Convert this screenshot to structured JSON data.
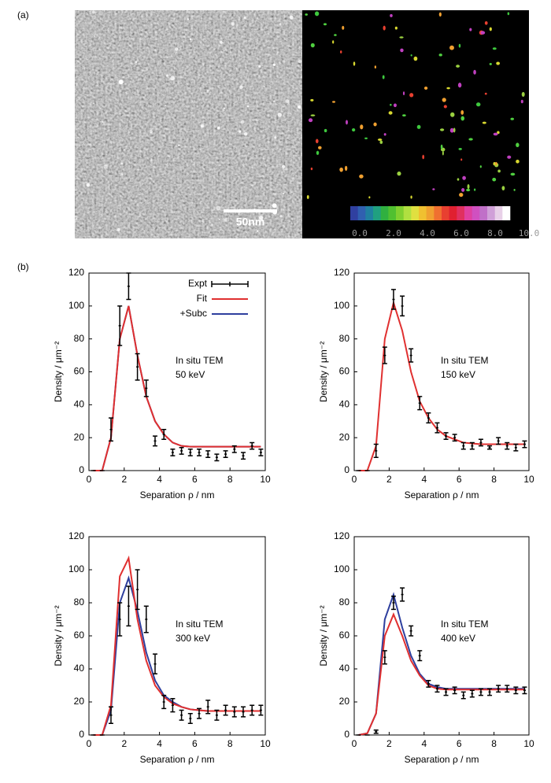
{
  "figure": {
    "label_a": "(a)",
    "label_b": "(b)",
    "scale_bar": "50nm",
    "colorbar_ticks": [
      "0.0",
      "2.0",
      "4.0",
      "6.0",
      "8.0",
      "10.0"
    ]
  },
  "chart_data": [
    {
      "type": "line",
      "xlabel": "Separation ρ / nm",
      "ylabel": "Density / μm⁻²",
      "annotations": [
        "In situ TEM",
        "50 keV"
      ],
      "legend": "upper right",
      "xlim": [
        0,
        10
      ],
      "xticks": [
        0,
        2,
        4,
        6,
        8,
        10
      ],
      "ylim": [
        0,
        120
      ],
      "yticks": [
        0,
        20,
        40,
        60,
        80,
        100,
        120
      ],
      "x": [
        0.25,
        0.75,
        1.25,
        1.75,
        2.25,
        2.75,
        3.25,
        3.75,
        4.25,
        4.75,
        5.25,
        5.75,
        6.25,
        6.75,
        7.25,
        7.75,
        8.25,
        8.75,
        9.25,
        9.75
      ],
      "series": [
        {
          "name": "Expt",
          "color": "#000000",
          "values": [
            0,
            0,
            25,
            88,
            112,
            63,
            50,
            18,
            22,
            11,
            12,
            11,
            11,
            10,
            8,
            10,
            13,
            9,
            15,
            11
          ],
          "errors": [
            0,
            0,
            7,
            12,
            8,
            8,
            5,
            3,
            3,
            2,
            2,
            2,
            2,
            2,
            2,
            2,
            2,
            2,
            2,
            2
          ]
        },
        {
          "name": "Fit",
          "color": "#e03030",
          "values": [
            0,
            0,
            20,
            80,
            100,
            70,
            45,
            30,
            22,
            17,
            15,
            14.5,
            14.5,
            14.5,
            14.5,
            14.5,
            14.5,
            14.5,
            14.5,
            14.5
          ]
        },
        {
          "name": "+Subc",
          "color": "#2e3f9e",
          "values": [
            0,
            0,
            20,
            80,
            100,
            70,
            45,
            30,
            22,
            17,
            15,
            14.5,
            14.5,
            14.5,
            14.5,
            14.5,
            14.5,
            14.5,
            14.5,
            14.5
          ]
        }
      ]
    },
    {
      "type": "line",
      "xlabel": "Separation ρ / nm",
      "ylabel": "Density / μm⁻²",
      "annotations": [
        "In situ TEM",
        "150 keV"
      ],
      "xlim": [
        0,
        10
      ],
      "xticks": [
        0,
        2,
        4,
        6,
        8,
        10
      ],
      "ylim": [
        0,
        120
      ],
      "yticks": [
        0,
        20,
        40,
        60,
        80,
        100,
        120
      ],
      "x": [
        0.25,
        0.75,
        1.25,
        1.75,
        2.25,
        2.75,
        3.25,
        3.75,
        4.25,
        4.75,
        5.25,
        5.75,
        6.25,
        6.75,
        7.25,
        7.75,
        8.25,
        8.75,
        9.25,
        9.75
      ],
      "series": [
        {
          "name": "Expt",
          "color": "#000000",
          "values": [
            0,
            0,
            12,
            70,
            104,
            100,
            70,
            41,
            32,
            26,
            21,
            20,
            15,
            15,
            17,
            14,
            18,
            15,
            14,
            16
          ],
          "errors": [
            0,
            0,
            4,
            5,
            6,
            6,
            4,
            4,
            3,
            3,
            2,
            2,
            2,
            2,
            2,
            1,
            2,
            2,
            2,
            2
          ]
        },
        {
          "name": "Fit",
          "color": "#e03030",
          "values": [
            0,
            0,
            15,
            80,
            102,
            85,
            60,
            42,
            32,
            25,
            21,
            19,
            17,
            16.5,
            16,
            16,
            16,
            16,
            16,
            16
          ]
        }
      ]
    },
    {
      "type": "line",
      "xlabel": "Separation ρ / nm",
      "ylabel": "Density / μm⁻²",
      "annotations": [
        "In situ TEM",
        "300 keV"
      ],
      "xlim": [
        0,
        10
      ],
      "xticks": [
        0,
        2,
        4,
        6,
        8,
        10
      ],
      "ylim": [
        0,
        120
      ],
      "yticks": [
        0,
        20,
        40,
        60,
        80,
        100,
        120
      ],
      "x": [
        0.25,
        0.75,
        1.25,
        1.75,
        2.25,
        2.75,
        3.25,
        3.75,
        4.25,
        4.75,
        5.25,
        5.75,
        6.25,
        6.75,
        7.25,
        7.75,
        8.25,
        8.75,
        9.25,
        9.75
      ],
      "series": [
        {
          "name": "Expt",
          "color": "#000000",
          "values": [
            0,
            0,
            12,
            70,
            78,
            88,
            70,
            43,
            20,
            18,
            12,
            10,
            13,
            17,
            12,
            15,
            14,
            14,
            15,
            15
          ],
          "errors": [
            0,
            0,
            5,
            10,
            12,
            12,
            8,
            6,
            4,
            4,
            3,
            3,
            3,
            4,
            3,
            3,
            3,
            3,
            3,
            3
          ]
        },
        {
          "name": "Fit",
          "color": "#e03030",
          "values": [
            0,
            0,
            18,
            96,
            107,
            70,
            45,
            30,
            23,
            19,
            17,
            15.5,
            15,
            14.5,
            14.5,
            14.5,
            14.5,
            14.5,
            14.5,
            14.5
          ]
        },
        {
          "name": "+Subc",
          "color": "#2e3f9e",
          "values": [
            0,
            0,
            15,
            80,
            95,
            75,
            50,
            33,
            24,
            20,
            17,
            15.5,
            15,
            14.5,
            14.5,
            14.5,
            14.5,
            14.5,
            14.5,
            14.5
          ]
        }
      ]
    },
    {
      "type": "line",
      "xlabel": "Separation ρ / nm",
      "ylabel": "Density / μm⁻²",
      "annotations": [
        "In situ TEM",
        "400 keV"
      ],
      "xlim": [
        0,
        10
      ],
      "xticks": [
        0,
        2,
        4,
        6,
        8,
        10
      ],
      "ylim": [
        0,
        120
      ],
      "yticks": [
        0,
        20,
        40,
        60,
        80,
        100,
        120
      ],
      "x": [
        0.25,
        0.75,
        1.25,
        1.75,
        2.25,
        2.75,
        3.25,
        3.75,
        4.25,
        4.75,
        5.25,
        5.75,
        6.25,
        6.75,
        7.25,
        7.75,
        8.25,
        8.75,
        9.25,
        9.75
      ],
      "series": [
        {
          "name": "Expt",
          "color": "#000000",
          "values": [
            0,
            0,
            2,
            47,
            80,
            85,
            63,
            48,
            31,
            28,
            26,
            27,
            24,
            25,
            26,
            26,
            28,
            28,
            27,
            27
          ],
          "errors": [
            0,
            0,
            1,
            4,
            4,
            4,
            3,
            3,
            2,
            2,
            2,
            2,
            2,
            2,
            2,
            2,
            2,
            2,
            2,
            2
          ]
        },
        {
          "name": "Fit",
          "color": "#e03030",
          "values": [
            0,
            1,
            13,
            60,
            73,
            60,
            45,
            36,
            30,
            28,
            27.5,
            27.5,
            27.5,
            27.5,
            27.5,
            27.5,
            27.5,
            27.5,
            27.5,
            27.5
          ]
        },
        {
          "name": "+Subc",
          "color": "#2e3f9e",
          "values": [
            0,
            1,
            13,
            70,
            85,
            65,
            48,
            37,
            31,
            29,
            28,
            28,
            28,
            28,
            28,
            28,
            28,
            28,
            28,
            28
          ]
        }
      ]
    }
  ]
}
